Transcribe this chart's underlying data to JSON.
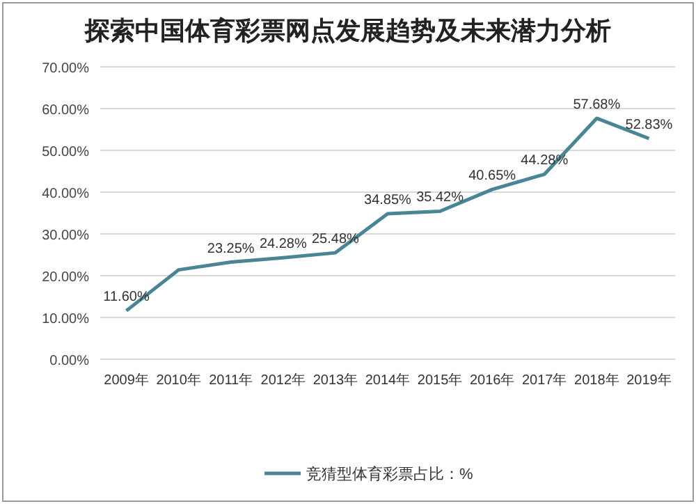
{
  "chart_data": {
    "type": "line",
    "title": "探索中国体育彩票网点发展趋势及未来潜力分析",
    "categories": [
      "2009年",
      "2010年",
      "2011年",
      "2012年",
      "2013年",
      "2014年",
      "2015年",
      "2016年",
      "2017年",
      "2018年",
      "2019年"
    ],
    "series": [
      {
        "name": "竞猜型体育彩票占比：%",
        "color": "#4a8596",
        "values": [
          11.6,
          21.4,
          23.25,
          24.28,
          25.48,
          34.85,
          35.42,
          40.65,
          44.28,
          57.68,
          52.83
        ],
        "value_labels": [
          "11.60%",
          null,
          "23.25%",
          "24.28%",
          "25.48%",
          "34.85%",
          "35.42%",
          "40.65%",
          "44.28%",
          "57.68%",
          "52.83%"
        ]
      }
    ],
    "ylim": [
      0,
      70
    ],
    "yticks": [
      {
        "value": 0,
        "label": "0.00%"
      },
      {
        "value": 10,
        "label": "10.00%"
      },
      {
        "value": 20,
        "label": "20.00%"
      },
      {
        "value": 30,
        "label": "30.00%"
      },
      {
        "value": 40,
        "label": "40.00%"
      },
      {
        "value": 50,
        "label": "50.00%"
      },
      {
        "value": 60,
        "label": "60.00%"
      },
      {
        "value": 70,
        "label": "70.00%"
      }
    ],
    "grid": "y",
    "legend": "bottom",
    "marker": "none",
    "line_style": "solid"
  }
}
